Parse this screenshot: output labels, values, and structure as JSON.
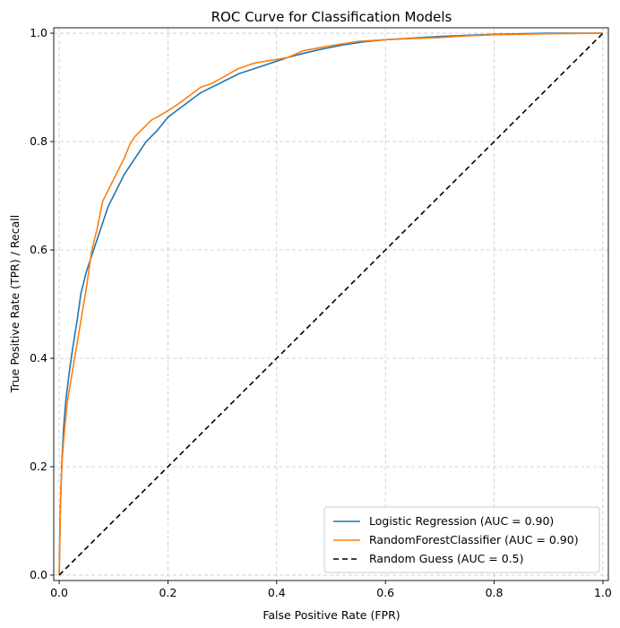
{
  "chart_data": {
    "type": "line",
    "title": "ROC Curve for Classification Models",
    "xlabel": "False Positive Rate (FPR)",
    "ylabel": "True Positive Rate (TPR) / Recall",
    "xlim": [
      -0.01,
      1.01
    ],
    "ylim": [
      -0.01,
      1.01
    ],
    "xticks": [
      "0.0",
      "0.2",
      "0.4",
      "0.6",
      "0.8",
      "1.0"
    ],
    "yticks": [
      "0.0",
      "0.2",
      "0.4",
      "0.6",
      "0.8",
      "1.0"
    ],
    "grid": true,
    "grid_style": "dashed",
    "legend_position": "lower-right",
    "series": [
      {
        "name": "Logistic Regression (AUC = 0.90)",
        "color": "#1f77b4",
        "style": "solid",
        "x": [
          0,
          0.002,
          0.005,
          0.008,
          0.012,
          0.018,
          0.025,
          0.033,
          0.04,
          0.05,
          0.06,
          0.07,
          0.08,
          0.09,
          0.1,
          0.11,
          0.12,
          0.13,
          0.14,
          0.15,
          0.16,
          0.17,
          0.18,
          0.2,
          0.22,
          0.24,
          0.26,
          0.28,
          0.3,
          0.33,
          0.36,
          0.39,
          0.42,
          0.45,
          0.48,
          0.52,
          0.56,
          0.6,
          0.65,
          0.7,
          0.75,
          0.8,
          0.85,
          0.9,
          0.95,
          1.0
        ],
        "y": [
          0,
          0.12,
          0.21,
          0.27,
          0.32,
          0.37,
          0.42,
          0.47,
          0.52,
          0.56,
          0.59,
          0.62,
          0.65,
          0.68,
          0.7,
          0.72,
          0.74,
          0.755,
          0.77,
          0.785,
          0.8,
          0.81,
          0.82,
          0.845,
          0.86,
          0.875,
          0.89,
          0.9,
          0.91,
          0.925,
          0.935,
          0.945,
          0.955,
          0.963,
          0.97,
          0.978,
          0.984,
          0.988,
          0.991,
          0.994,
          0.996,
          0.998,
          0.999,
          1.0,
          1.0,
          1.0
        ]
      },
      {
        "name": "RandomForestClassifier (AUC = 0.90)",
        "color": "#ff7f0e",
        "style": "solid",
        "x": [
          0,
          0.003,
          0.006,
          0.01,
          0.015,
          0.02,
          0.025,
          0.03,
          0.04,
          0.05,
          0.06,
          0.07,
          0.08,
          0.09,
          0.1,
          0.11,
          0.12,
          0.13,
          0.14,
          0.15,
          0.16,
          0.17,
          0.18,
          0.2,
          0.22,
          0.24,
          0.26,
          0.28,
          0.3,
          0.33,
          0.36,
          0.39,
          0.42,
          0.45,
          0.5,
          0.55,
          0.6,
          0.65,
          0.7,
          0.75,
          0.8,
          0.9,
          1.0
        ],
        "y": [
          0,
          0.16,
          0.22,
          0.27,
          0.32,
          0.35,
          0.38,
          0.41,
          0.47,
          0.53,
          0.6,
          0.64,
          0.69,
          0.71,
          0.73,
          0.75,
          0.77,
          0.795,
          0.81,
          0.82,
          0.83,
          0.84,
          0.845,
          0.857,
          0.87,
          0.885,
          0.9,
          0.907,
          0.918,
          0.935,
          0.945,
          0.95,
          0.955,
          0.968,
          0.977,
          0.985,
          0.988,
          0.99,
          0.992,
          0.995,
          0.997,
          0.999,
          1.0
        ]
      },
      {
        "name": "Random Guess (AUC = 0.5)",
        "color": "#000000",
        "style": "dashed",
        "x": [
          0,
          1
        ],
        "y": [
          0,
          1
        ]
      }
    ]
  }
}
